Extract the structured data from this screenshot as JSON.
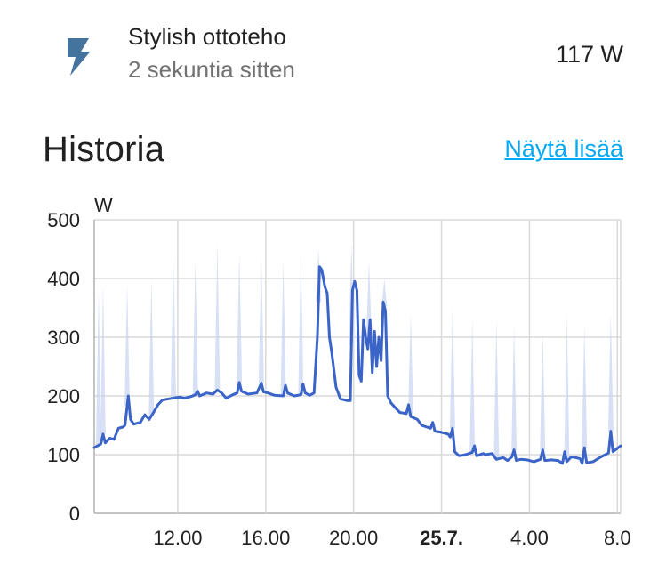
{
  "entity": {
    "name": "Stylish ottoteho",
    "last_changed": "2 sekuntia sitten",
    "state": "117 W",
    "icon": "flash-icon",
    "icon_color": "#44739e"
  },
  "history": {
    "title": "Historia",
    "show_more": "Näytä lisää",
    "show_more_color": "#03a9f4"
  },
  "chart_data": {
    "type": "line",
    "title": "",
    "ylabel": "W",
    "xlabel": "",
    "ylim": [
      0,
      500
    ],
    "y_ticks": [
      0,
      100,
      200,
      300,
      400,
      500
    ],
    "x_range_hours": [
      8.2,
      32.15
    ],
    "x_ticks": [
      {
        "hour": 12,
        "label": "12.00",
        "bold": false
      },
      {
        "hour": 16,
        "label": "16.00",
        "bold": false
      },
      {
        "hour": 20,
        "label": "20.00",
        "bold": false
      },
      {
        "hour": 24,
        "label": "25.7.",
        "bold": true
      },
      {
        "hour": 28,
        "label": "4.00",
        "bold": false
      },
      {
        "hour": 32,
        "label": "8.0",
        "bold": false
      }
    ],
    "grid": true,
    "line_color": "#3b64c8",
    "band_color": "#c9d5f2",
    "series": [
      {
        "values": [
          [
            8.2,
            112
          ],
          [
            8.5,
            118
          ],
          [
            8.6,
            135
          ],
          [
            8.7,
            120
          ],
          [
            8.9,
            128
          ],
          [
            9.1,
            126
          ],
          [
            9.3,
            145
          ],
          [
            9.5,
            147
          ],
          [
            9.6,
            150
          ],
          [
            9.75,
            200
          ],
          [
            9.85,
            160
          ],
          [
            10.0,
            152
          ],
          [
            10.3,
            155
          ],
          [
            10.5,
            168
          ],
          [
            10.7,
            160
          ],
          [
            10.9,
            172
          ],
          [
            11.1,
            185
          ],
          [
            11.3,
            193
          ],
          [
            11.6,
            195
          ],
          [
            11.9,
            197
          ],
          [
            12.1,
            198
          ],
          [
            12.3,
            196
          ],
          [
            12.6,
            199
          ],
          [
            12.8,
            202
          ],
          [
            12.9,
            208
          ],
          [
            13.0,
            200
          ],
          [
            13.3,
            205
          ],
          [
            13.6,
            203
          ],
          [
            13.8,
            210
          ],
          [
            14.0,
            205
          ],
          [
            14.2,
            196
          ],
          [
            14.5,
            202
          ],
          [
            14.7,
            205
          ],
          [
            14.8,
            223
          ],
          [
            14.9,
            208
          ],
          [
            15.2,
            203
          ],
          [
            15.6,
            205
          ],
          [
            15.8,
            222
          ],
          [
            15.9,
            207
          ],
          [
            16.1,
            205
          ],
          [
            16.4,
            201
          ],
          [
            16.8,
            200
          ],
          [
            16.9,
            218
          ],
          [
            17.0,
            205
          ],
          [
            17.3,
            200
          ],
          [
            17.6,
            202
          ],
          [
            17.7,
            220
          ],
          [
            17.8,
            205
          ],
          [
            18.0,
            201
          ],
          [
            18.2,
            205
          ],
          [
            18.35,
            300
          ],
          [
            18.45,
            420
          ],
          [
            18.55,
            415
          ],
          [
            18.7,
            385
          ],
          [
            18.8,
            375
          ],
          [
            18.9,
            300
          ],
          [
            19.0,
            275
          ],
          [
            19.2,
            215
          ],
          [
            19.4,
            195
          ],
          [
            19.7,
            192
          ],
          [
            19.85,
            192
          ],
          [
            19.95,
            380
          ],
          [
            20.05,
            395
          ],
          [
            20.15,
            380
          ],
          [
            20.25,
            235
          ],
          [
            20.35,
            225
          ],
          [
            20.45,
            330
          ],
          [
            20.55,
            300
          ],
          [
            20.65,
            280
          ],
          [
            20.75,
            330
          ],
          [
            20.85,
            240
          ],
          [
            20.95,
            310
          ],
          [
            21.05,
            250
          ],
          [
            21.15,
            300
          ],
          [
            21.25,
            260
          ],
          [
            21.35,
            360
          ],
          [
            21.45,
            345
          ],
          [
            21.55,
            200
          ],
          [
            21.7,
            188
          ],
          [
            21.9,
            180
          ],
          [
            22.1,
            172
          ],
          [
            22.4,
            170
          ],
          [
            22.5,
            185
          ],
          [
            22.6,
            165
          ],
          [
            22.9,
            160
          ],
          [
            23.1,
            150
          ],
          [
            23.5,
            145
          ],
          [
            23.6,
            155
          ],
          [
            23.7,
            140
          ],
          [
            24.0,
            138
          ],
          [
            24.3,
            135
          ],
          [
            24.4,
            130
          ],
          [
            24.5,
            145
          ],
          [
            24.6,
            105
          ],
          [
            24.8,
            98
          ],
          [
            25.1,
            100
          ],
          [
            25.4,
            104
          ],
          [
            25.5,
            115
          ],
          [
            25.6,
            98
          ],
          [
            25.9,
            102
          ],
          [
            26.0,
            100
          ],
          [
            26.3,
            102
          ],
          [
            26.5,
            92
          ],
          [
            26.8,
            95
          ],
          [
            27.0,
            90
          ],
          [
            27.2,
            96
          ],
          [
            27.3,
            108
          ],
          [
            27.4,
            90
          ],
          [
            27.6,
            92
          ],
          [
            27.9,
            91
          ],
          [
            28.2,
            88
          ],
          [
            28.5,
            92
          ],
          [
            28.6,
            108
          ],
          [
            28.7,
            90
          ],
          [
            29.0,
            91
          ],
          [
            29.3,
            90
          ],
          [
            29.5,
            85
          ],
          [
            29.6,
            105
          ],
          [
            29.7,
            88
          ],
          [
            29.9,
            96
          ],
          [
            30.1,
            95
          ],
          [
            30.3,
            93
          ],
          [
            30.4,
            85
          ],
          [
            30.5,
            112
          ],
          [
            30.6,
            86
          ],
          [
            30.9,
            88
          ],
          [
            31.2,
            95
          ],
          [
            31.6,
            103
          ],
          [
            31.7,
            140
          ],
          [
            31.8,
            105
          ],
          [
            32.15,
            115
          ]
        ]
      }
    ],
    "band_spikes": [
      [
        8.4,
        380
      ],
      [
        8.6,
        390
      ],
      [
        9.7,
        390
      ],
      [
        10.8,
        400
      ],
      [
        11.8,
        440
      ],
      [
        12.8,
        430
      ],
      [
        13.8,
        460
      ],
      [
        14.8,
        445
      ],
      [
        15.8,
        435
      ],
      [
        16.8,
        430
      ],
      [
        17.6,
        440
      ],
      [
        18.4,
        450
      ],
      [
        19.9,
        460
      ],
      [
        20.7,
        430
      ],
      [
        21.4,
        400
      ],
      [
        22.6,
        340
      ],
      [
        24.5,
        350
      ],
      [
        25.4,
        330
      ],
      [
        26.5,
        330
      ],
      [
        27.3,
        320
      ],
      [
        28.6,
        310
      ],
      [
        29.7,
        340
      ],
      [
        30.5,
        320
      ],
      [
        31.7,
        340
      ]
    ]
  }
}
